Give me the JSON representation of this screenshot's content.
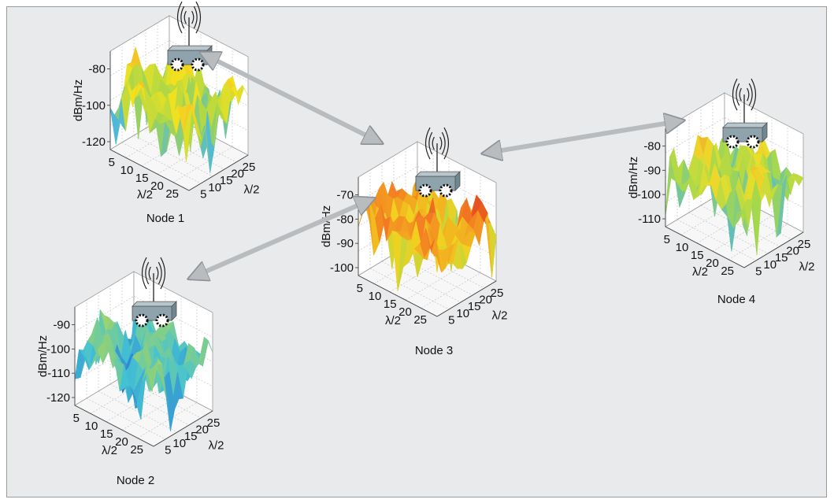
{
  "nodes": [
    {
      "name": "Node 1",
      "z_label": "dBm/Hz",
      "x_label": "λ/2",
      "y_label": "λ/2",
      "z_ticks": [
        "-80",
        "-100",
        "-120"
      ],
      "x_ticks": [
        "5",
        "10",
        "15",
        "20",
        "25"
      ],
      "y_ticks": [
        "5",
        "10",
        "15",
        "20",
        "25"
      ],
      "colors": [
        "#3a6fc6",
        "#4fb9d8",
        "#a8d64a",
        "#f2e21e",
        "#f4a92a"
      ]
    },
    {
      "name": "Node 2",
      "z_label": "dBm/Hz",
      "x_label": "λ/2",
      "y_label": "λ/2",
      "z_ticks": [
        "-90",
        "-100",
        "-110",
        "-120"
      ],
      "x_ticks": [
        "5",
        "10",
        "15",
        "20",
        "25"
      ],
      "y_ticks": [
        "5",
        "10",
        "15",
        "20",
        "25"
      ],
      "colors": [
        "#2b3f9c",
        "#2f85d0",
        "#45c3d3",
        "#8fd07a",
        "#cfe04a"
      ]
    },
    {
      "name": "Node 3",
      "z_label": "dBm/Hz",
      "x_label": "λ/2",
      "y_label": "λ/2",
      "z_ticks": [
        "-70",
        "-80",
        "-90",
        "-100"
      ],
      "x_ticks": [
        "5",
        "10",
        "15",
        "20",
        "25"
      ],
      "y_ticks": [
        "5",
        "10",
        "15",
        "20",
        "25"
      ],
      "colors": [
        "#54c7d6",
        "#a6d84c",
        "#f2d11f",
        "#f37a22",
        "#d9271f"
      ]
    },
    {
      "name": "Node 4",
      "z_label": "dBm/Hz",
      "x_label": "λ/2",
      "y_label": "λ/2",
      "z_ticks": [
        "-80",
        "-90",
        "-100",
        "-110"
      ],
      "x_ticks": [
        "5",
        "10",
        "15",
        "20",
        "25"
      ],
      "y_ticks": [
        "5",
        "10",
        "15",
        "20",
        "25"
      ],
      "colors": [
        "#3b63c0",
        "#4fb8d6",
        "#a5d84c",
        "#ecde2a",
        "#f3a32b"
      ]
    }
  ],
  "links": [
    {
      "from": "Node 1",
      "to": "Node 3"
    },
    {
      "from": "Node 3",
      "to": "Node 4"
    },
    {
      "from": "Node 2",
      "to": "Node 3"
    }
  ],
  "colors": {
    "background": "#e9eaeb",
    "frame_border": "#9a9a9a",
    "arrow": "#b9bcbf",
    "robot_body": "#8fa3ad"
  }
}
